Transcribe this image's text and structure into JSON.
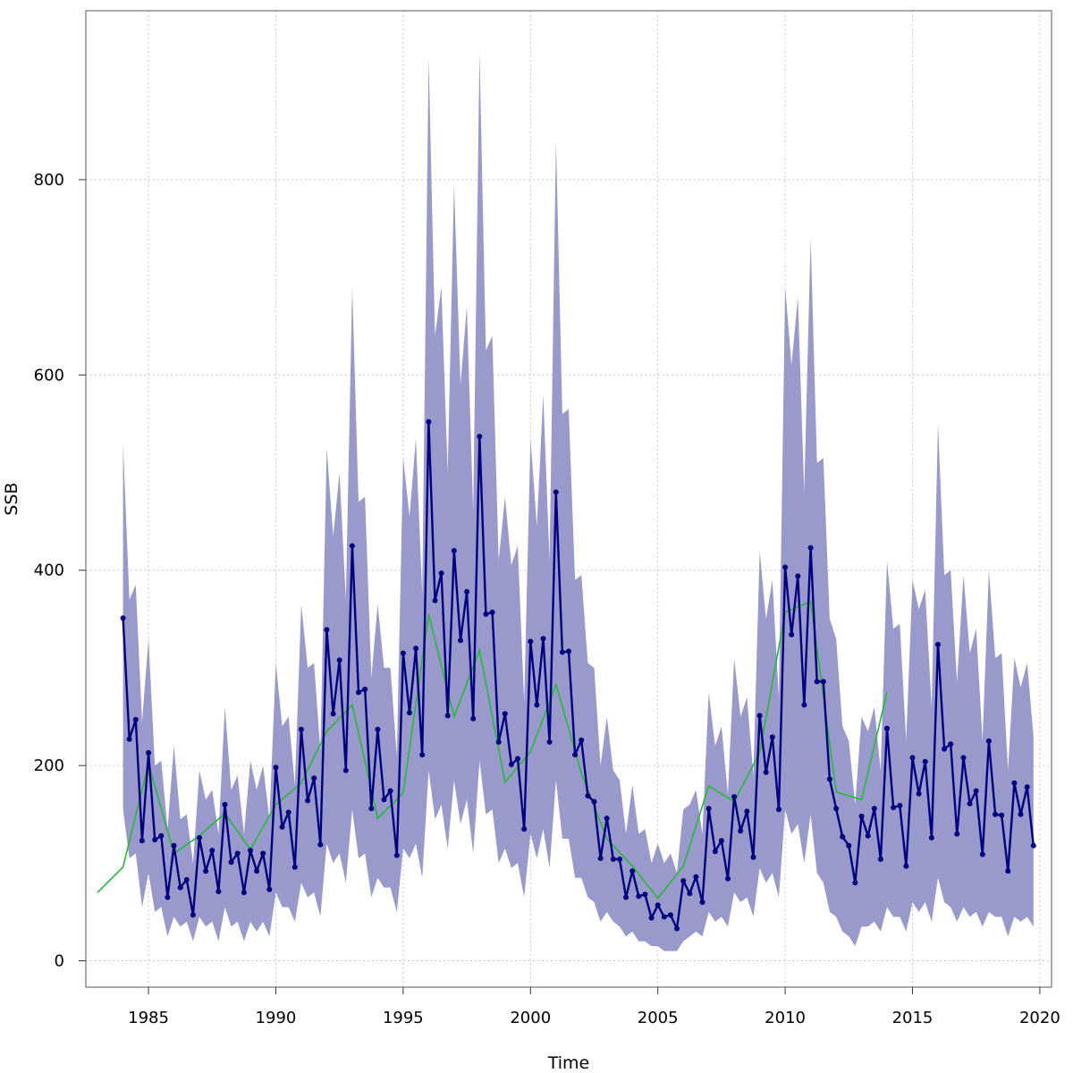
{
  "chart_data": {
    "type": "line",
    "xlabel": "Time",
    "ylabel": "SSB",
    "xlim": [
      1982.54,
      2020.46
    ],
    "ylim": [
      -27,
      973
    ],
    "x_ticks": [
      1985,
      1990,
      1995,
      2000,
      2005,
      2010,
      2015,
      2020
    ],
    "y_ticks": [
      0,
      200,
      400,
      600,
      800
    ],
    "grid": true,
    "colors": {
      "band": "#9999cc",
      "quarterly": "#000080",
      "annual": "#22bb33",
      "grid": "#c8c8c8"
    },
    "series": [
      {
        "style": "band",
        "x": [
          1984.0,
          1984.25,
          1984.5,
          1984.75,
          1985.0,
          1985.25,
          1985.5,
          1985.75,
          1986.0,
          1986.25,
          1986.5,
          1986.75,
          1987.0,
          1987.25,
          1987.5,
          1987.75,
          1988.0,
          1988.25,
          1988.5,
          1988.75,
          1989.0,
          1989.25,
          1989.5,
          1989.75,
          1990.0,
          1990.25,
          1990.5,
          1990.75,
          1991.0,
          1991.25,
          1991.5,
          1991.75,
          1992.0,
          1992.25,
          1992.5,
          1992.75,
          1993.0,
          1993.25,
          1993.5,
          1993.75,
          1994.0,
          1994.25,
          1994.5,
          1994.75,
          1995.0,
          1995.25,
          1995.5,
          1995.75,
          1996.0,
          1996.25,
          1996.5,
          1996.75,
          1997.0,
          1997.25,
          1997.5,
          1997.75,
          1998.0,
          1998.25,
          1998.5,
          1998.75,
          1999.0,
          1999.25,
          1999.5,
          1999.75,
          2000.0,
          2000.25,
          2000.5,
          2000.75,
          2001.0,
          2001.25,
          2001.5,
          2001.75,
          2002.0,
          2002.25,
          2002.5,
          2002.75,
          2003.0,
          2003.25,
          2003.5,
          2003.75,
          2004.0,
          2004.25,
          2004.5,
          2004.75,
          2005.0,
          2005.25,
          2005.5,
          2005.75,
          2006.0,
          2006.25,
          2006.5,
          2006.75,
          2007.0,
          2007.25,
          2007.5,
          2007.75,
          2008.0,
          2008.25,
          2008.5,
          2008.75,
          2009.0,
          2009.25,
          2009.5,
          2009.75,
          2010.0,
          2010.25,
          2010.5,
          2010.75,
          2011.0,
          2011.25,
          2011.5,
          2011.75,
          2012.0,
          2012.25,
          2012.5,
          2012.75,
          2013.0,
          2013.25,
          2013.5,
          2013.75,
          2014.0,
          2014.25,
          2014.5,
          2014.75,
          2015.0,
          2015.25,
          2015.5,
          2015.75,
          2016.0,
          2016.25,
          2016.5,
          2016.75,
          2017.0,
          2017.25,
          2017.5,
          2017.75,
          2018.0,
          2018.25,
          2018.5,
          2018.75,
          2019.0,
          2019.25,
          2019.5,
          2019.75
        ],
        "upper": [
          530,
          370,
          385,
          245,
          330,
          200,
          205,
          135,
          220,
          145,
          150,
          100,
          195,
          165,
          175,
          130,
          260,
          175,
          190,
          130,
          205,
          175,
          200,
          145,
          305,
          240,
          250,
          180,
          365,
          300,
          305,
          215,
          525,
          435,
          500,
          370,
          690,
          470,
          475,
          290,
          365,
          300,
          300,
          210,
          515,
          455,
          535,
          375,
          925,
          640,
          690,
          500,
          795,
          590,
          670,
          460,
          930,
          625,
          640,
          410,
          475,
          405,
          425,
          265,
          535,
          445,
          580,
          410,
          840,
          560,
          565,
          390,
          395,
          305,
          300,
          200,
          250,
          195,
          185,
          130,
          180,
          130,
          135,
          100,
          120,
          100,
          110,
          90,
          155,
          160,
          175,
          130,
          275,
          220,
          240,
          170,
          310,
          250,
          270,
          190,
          420,
          350,
          390,
          270,
          690,
          610,
          680,
          480,
          740,
          510,
          515,
          350,
          330,
          240,
          225,
          160,
          250,
          235,
          260,
          195,
          410,
          340,
          345,
          225,
          390,
          360,
          380,
          260,
          550,
          395,
          400,
          285,
          395,
          315,
          340,
          225,
          400,
          310,
          315,
          195,
          310,
          280,
          305,
          230
        ],
        "lower": [
          155,
          105,
          110,
          55,
          90,
          50,
          55,
          25,
          45,
          35,
          40,
          20,
          45,
          35,
          40,
          20,
          55,
          35,
          40,
          20,
          40,
          30,
          40,
          25,
          70,
          55,
          55,
          40,
          80,
          65,
          70,
          45,
          120,
          100,
          110,
          80,
          155,
          105,
          110,
          65,
          85,
          75,
          75,
          50,
          115,
          105,
          120,
          85,
          195,
          145,
          160,
          115,
          185,
          140,
          165,
          110,
          205,
          150,
          155,
          100,
          115,
          95,
          100,
          65,
          130,
          105,
          135,
          95,
          185,
          125,
          125,
          85,
          85,
          65,
          60,
          40,
          50,
          40,
          35,
          25,
          30,
          20,
          20,
          15,
          15,
          10,
          10,
          10,
          20,
          25,
          30,
          25,
          50,
          40,
          45,
          35,
          70,
          60,
          65,
          45,
          95,
          80,
          90,
          65,
          155,
          130,
          140,
          100,
          150,
          90,
          80,
          50,
          45,
          30,
          25,
          15,
          35,
          35,
          40,
          30,
          55,
          45,
          45,
          30,
          60,
          50,
          60,
          40,
          85,
          60,
          55,
          40,
          55,
          45,
          50,
          35,
          50,
          45,
          45,
          25,
          45,
          40,
          45,
          35
        ]
      },
      {
        "style": "line-points",
        "x": [
          1984.0,
          1984.25,
          1984.5,
          1984.75,
          1985.0,
          1985.25,
          1985.5,
          1985.75,
          1986.0,
          1986.25,
          1986.5,
          1986.75,
          1987.0,
          1987.25,
          1987.5,
          1987.75,
          1988.0,
          1988.25,
          1988.5,
          1988.75,
          1989.0,
          1989.25,
          1989.5,
          1989.75,
          1990.0,
          1990.25,
          1990.5,
          1990.75,
          1991.0,
          1991.25,
          1991.5,
          1991.75,
          1992.0,
          1992.25,
          1992.5,
          1992.75,
          1993.0,
          1993.25,
          1993.5,
          1993.75,
          1994.0,
          1994.25,
          1994.5,
          1994.75,
          1995.0,
          1995.25,
          1995.5,
          1995.75,
          1996.0,
          1996.25,
          1996.5,
          1996.75,
          1997.0,
          1997.25,
          1997.5,
          1997.75,
          1998.0,
          1998.25,
          1998.5,
          1998.75,
          1999.0,
          1999.25,
          1999.5,
          1999.75,
          2000.0,
          2000.25,
          2000.5,
          2000.75,
          2001.0,
          2001.25,
          2001.5,
          2001.75,
          2002.0,
          2002.25,
          2002.5,
          2002.75,
          2003.0,
          2003.25,
          2003.5,
          2003.75,
          2004.0,
          2004.25,
          2004.5,
          2004.75,
          2005.0,
          2005.25,
          2005.5,
          2005.75,
          2006.0,
          2006.25,
          2006.5,
          2006.75,
          2007.0,
          2007.25,
          2007.5,
          2007.75,
          2008.0,
          2008.25,
          2008.5,
          2008.75,
          2009.0,
          2009.25,
          2009.5,
          2009.75,
          2010.0,
          2010.25,
          2010.5,
          2010.75,
          2011.0,
          2011.25,
          2011.5,
          2011.75,
          2012.0,
          2012.25,
          2012.5,
          2012.75,
          2013.0,
          2013.25,
          2013.5,
          2013.75,
          2014.0,
          2014.25,
          2014.5,
          2014.75,
          2015.0,
          2015.25,
          2015.5,
          2015.75,
          2016.0,
          2016.25,
          2016.5,
          2016.75,
          2017.0,
          2017.25,
          2017.5,
          2017.75,
          2018.0,
          2018.25,
          2018.5,
          2018.75,
          2019.0,
          2019.25,
          2019.5,
          2019.75
        ],
        "values": [
          351,
          227,
          247,
          123,
          213,
          124,
          128,
          65,
          118,
          75,
          83,
          47,
          126,
          92,
          113,
          71,
          160,
          101,
          110,
          70,
          113,
          92,
          110,
          73,
          198,
          137,
          152,
          96,
          237,
          164,
          187,
          119,
          339,
          253,
          308,
          195,
          425,
          275,
          278,
          156,
          237,
          165,
          174,
          108,
          315,
          254,
          320,
          211,
          552,
          369,
          397,
          251,
          420,
          328,
          378,
          248,
          537,
          355,
          357,
          224,
          253,
          201,
          207,
          135,
          327,
          262,
          330,
          224,
          480,
          316,
          317,
          211,
          226,
          169,
          163,
          105,
          146,
          104,
          104,
          65,
          92,
          66,
          68,
          44,
          57,
          45,
          47,
          33,
          82,
          69,
          86,
          60,
          156,
          112,
          123,
          84,
          168,
          133,
          153,
          106,
          251,
          193,
          229,
          155,
          403,
          334,
          394,
          262,
          423,
          286,
          286,
          186,
          156,
          127,
          118,
          80,
          148,
          128,
          156,
          104,
          238,
          157,
          159,
          97,
          208,
          171,
          204,
          126,
          324,
          217,
          222,
          130,
          208,
          161,
          174,
          109,
          225,
          150,
          149,
          92,
          182,
          150,
          178,
          118
        ]
      },
      {
        "style": "line",
        "x": [
          1983.0,
          1984.0,
          1985.0,
          1986.0,
          1987.0,
          1988.0,
          1989.0,
          1990.0,
          1991.0,
          1992.0,
          1993.0,
          1994.0,
          1995.0,
          1996.0,
          1997.0,
          1998.0,
          1999.0,
          2000.0,
          2001.0,
          2002.0,
          2003.0,
          2004.0,
          2005.0,
          2006.0,
          2007.0,
          2008.0,
          2009.0,
          2010.0,
          2011.0,
          2012.0,
          2013.0,
          2014.0
        ],
        "values": [
          70,
          96,
          202,
          110,
          128,
          151,
          114,
          160,
          182,
          235,
          262,
          146,
          172,
          355,
          250,
          318,
          183,
          214,
          283,
          192,
          125,
          97,
          64,
          97,
          179,
          163,
          213,
          357,
          368,
          173,
          165,
          275
        ]
      }
    ]
  }
}
